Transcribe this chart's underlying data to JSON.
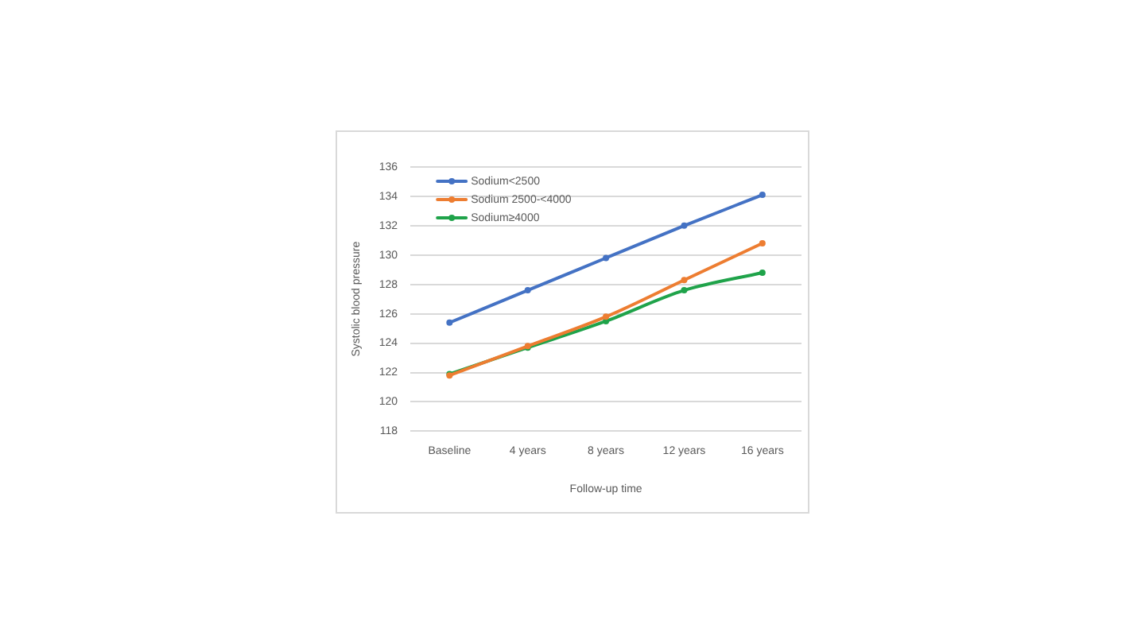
{
  "chart_data": {
    "type": "line",
    "xlabel": "Follow-up time",
    "ylabel": "Systolic blood pressure",
    "categories": [
      "Baseline",
      "4 years",
      "8 years",
      "12 years",
      "16 years"
    ],
    "series": [
      {
        "name": "Sodium<2500",
        "color": "#4472c4",
        "values": [
          125.4,
          127.6,
          129.8,
          132.0,
          134.1
        ]
      },
      {
        "name": "Sodium 2500-<4000",
        "color": "#ed7d31",
        "values": [
          121.8,
          123.8,
          125.8,
          128.3,
          130.8
        ]
      },
      {
        "name": "Sodium≥4000",
        "color": "#1fa34a",
        "values": [
          121.9,
          123.7,
          125.5,
          127.6,
          128.8
        ]
      }
    ],
    "ylim": [
      118,
      136
    ],
    "yticks": [
      118,
      120,
      122,
      124,
      126,
      128,
      130,
      132,
      134,
      136
    ],
    "grid": "y",
    "legend": "top left",
    "marker": "circle",
    "line_style": "solid"
  }
}
